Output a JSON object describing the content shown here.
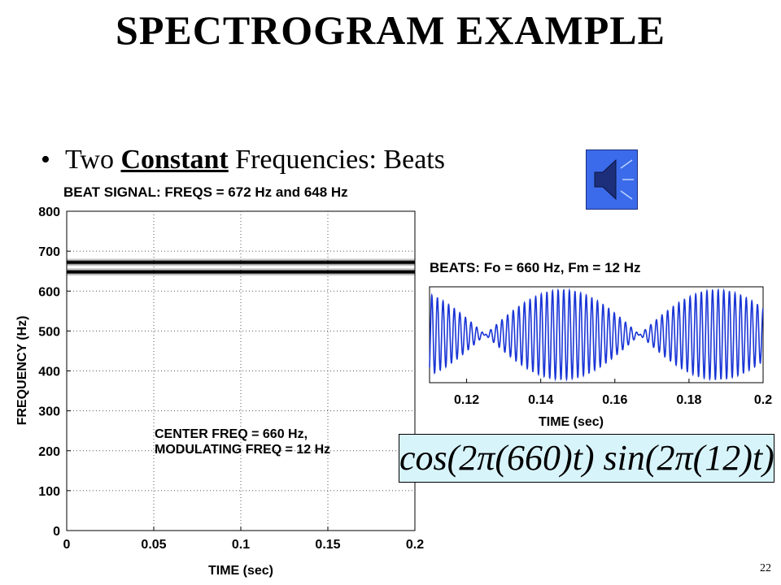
{
  "slide": {
    "title": "SPECTROGRAM EXAMPLE",
    "bullet_pre": "Two ",
    "bullet_em": "Constant",
    "bullet_post": " Frequencies:  Beats",
    "formula": "cos(2π(660)t) sin(2π(12)t)",
    "page_number": "22"
  },
  "icons": {
    "speaker": "speaker-icon"
  },
  "chart_data": [
    {
      "type": "heatmap",
      "title": "BEAT SIGNAL:  FREQS = 672 Hz and 648 Hz",
      "xlabel": "TIME (sec)",
      "ylabel": "FREQUENCY (Hz)",
      "xlim": [
        0,
        0.2
      ],
      "ylim": [
        0,
        800
      ],
      "xticks": [
        "0",
        "0.05",
        "0.1",
        "0.15",
        "0.2"
      ],
      "yticks": [
        "0",
        "100",
        "200",
        "300",
        "400",
        "500",
        "600",
        "700",
        "800"
      ],
      "grid": true,
      "bands": [
        {
          "freq": 672,
          "start": 0,
          "end": 0.2
        },
        {
          "freq": 648,
          "start": 0,
          "end": 0.2
        }
      ],
      "annotation_lines": [
        "CENTER FREQ = 660 Hz,",
        "MODULATING FREQ = 12 Hz"
      ],
      "color": "#000000"
    },
    {
      "type": "line",
      "title": "BEATS: Fo = 660 Hz,   Fm = 12 Hz",
      "xlabel": "TIME (sec)",
      "xlim": [
        0.11,
        0.2
      ],
      "xticks": [
        "0.12",
        "0.14",
        "0.16",
        "0.18",
        "0.2"
      ],
      "carrier_hz": 660,
      "modulating_hz": 12,
      "color": "#1a35d6"
    }
  ]
}
